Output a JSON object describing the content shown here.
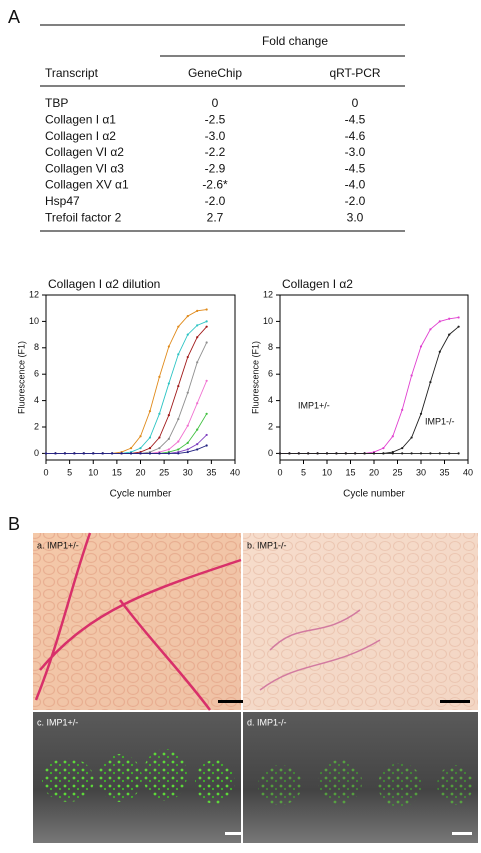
{
  "panels": {
    "a": "A",
    "b": "B"
  },
  "table": {
    "group_header": "Fold change",
    "columns": [
      "Transcript",
      "GeneChip",
      "qRT-PCR"
    ],
    "rows": [
      [
        "TBP",
        "0",
        "0"
      ],
      [
        "Collagen I α1",
        "-2.5",
        "-4.5"
      ],
      [
        "Collagen I α2",
        "-3.0",
        "-4.6"
      ],
      [
        "Collagen VI α2",
        "-2.2",
        "-3.0"
      ],
      [
        "Collagen VI α3",
        "-2.9",
        "-4.5"
      ],
      [
        "Collagen XV α1",
        "-2.6*",
        "-4.0"
      ],
      [
        "Hsp47",
        "-2.0",
        "-2.0"
      ],
      [
        "Trefoil factor 2",
        "2.7",
        "3.0"
      ]
    ]
  },
  "chart_data": [
    {
      "type": "line",
      "title": "Collagen I α2 dilution",
      "xlabel": "Cycle number",
      "ylabel": "Fluorescence (F1)",
      "x": [
        0,
        2,
        4,
        6,
        8,
        10,
        12,
        14,
        16,
        18,
        20,
        22,
        24,
        26,
        28,
        30,
        32,
        34
      ],
      "xlim": [
        0,
        40
      ],
      "xticks": [
        0,
        5,
        10,
        15,
        20,
        25,
        30,
        35,
        40
      ],
      "ylim": [
        -0.5,
        12
      ],
      "yticks": [
        0,
        2,
        4,
        6,
        8,
        10,
        12
      ],
      "series": [
        {
          "color": "#e08a1a",
          "values": [
            0,
            0,
            0,
            0,
            0,
            0,
            0,
            0,
            0.1,
            0.4,
            1.3,
            3.2,
            5.8,
            8.1,
            9.6,
            10.4,
            10.8,
            10.9
          ]
        },
        {
          "color": "#2ec4c4",
          "values": [
            0,
            0,
            0,
            0,
            0,
            0,
            0,
            0,
            0,
            0.1,
            0.4,
            1.2,
            3,
            5.3,
            7.5,
            9,
            9.7,
            10
          ]
        },
        {
          "color": "#a01818",
          "values": [
            0,
            0,
            0,
            0,
            0,
            0,
            0,
            0,
            0,
            0,
            0.1,
            0.4,
            1.2,
            2.9,
            5.1,
            7.3,
            8.8,
            9.6
          ]
        },
        {
          "color": "#909090",
          "values": [
            0,
            0,
            0,
            0,
            0,
            0,
            0,
            0,
            0,
            0,
            0,
            0.1,
            0.4,
            1.1,
            2.6,
            4.6,
            6.9,
            8.4
          ]
        },
        {
          "color": "#f070d0",
          "values": [
            0,
            0,
            0,
            0,
            0,
            0,
            0,
            0,
            0,
            0,
            0,
            0,
            0.1,
            0.3,
            0.9,
            2.1,
            3.8,
            5.5
          ]
        },
        {
          "color": "#40c040",
          "values": [
            0,
            0,
            0,
            0,
            0,
            0,
            0,
            0,
            0,
            0,
            0,
            0,
            0,
            0.1,
            0.3,
            0.8,
            1.8,
            3
          ]
        },
        {
          "color": "#8040c0",
          "values": [
            0,
            0,
            0,
            0,
            0,
            0,
            0,
            0,
            0,
            0,
            0,
            0,
            0,
            0,
            0.1,
            0.3,
            0.7,
            1.4
          ]
        },
        {
          "color": "#202080",
          "values": [
            0,
            0,
            0,
            0,
            0,
            0,
            0,
            0,
            0,
            0,
            0,
            0,
            0,
            0,
            0,
            0.1,
            0.3,
            0.6
          ]
        }
      ]
    },
    {
      "type": "line",
      "title": "Collagen I α2",
      "xlabel": "Cycle number",
      "ylabel": "Fluorescence (F1)",
      "x": [
        0,
        2,
        4,
        6,
        8,
        10,
        12,
        14,
        16,
        18,
        20,
        22,
        24,
        26,
        28,
        30,
        32,
        34,
        36,
        38
      ],
      "xlim": [
        0,
        40
      ],
      "xticks": [
        0,
        5,
        10,
        15,
        20,
        25,
        30,
        35,
        40
      ],
      "ylim": [
        -0.5,
        12
      ],
      "yticks": [
        0,
        2,
        4,
        6,
        8,
        10,
        12
      ],
      "series": [
        {
          "name": "IMP1+/-",
          "color": "#e040d0",
          "values": [
            0,
            0,
            0,
            0,
            0,
            0,
            0,
            0,
            0,
            0,
            0.1,
            0.4,
            1.3,
            3.3,
            5.9,
            8.1,
            9.4,
            10,
            10.2,
            10.3
          ]
        },
        {
          "name": "IMP1-/-",
          "color": "#202020",
          "values": [
            0,
            0,
            0,
            0,
            0,
            0,
            0,
            0,
            0,
            0,
            0,
            0,
            0.1,
            0.4,
            1.2,
            3,
            5.4,
            7.7,
            9,
            9.6
          ]
        },
        {
          "color": "#202020",
          "values": [
            0,
            0,
            0,
            0,
            0,
            0,
            0,
            0,
            0,
            0,
            0,
            0,
            0,
            0,
            0,
            0,
            0,
            0,
            0,
            0
          ]
        }
      ]
    }
  ],
  "micrographs": [
    "a. IMP1+/-",
    "b. IMP1-/-",
    "c. IMP1+/-",
    "d. IMP1-/-"
  ]
}
